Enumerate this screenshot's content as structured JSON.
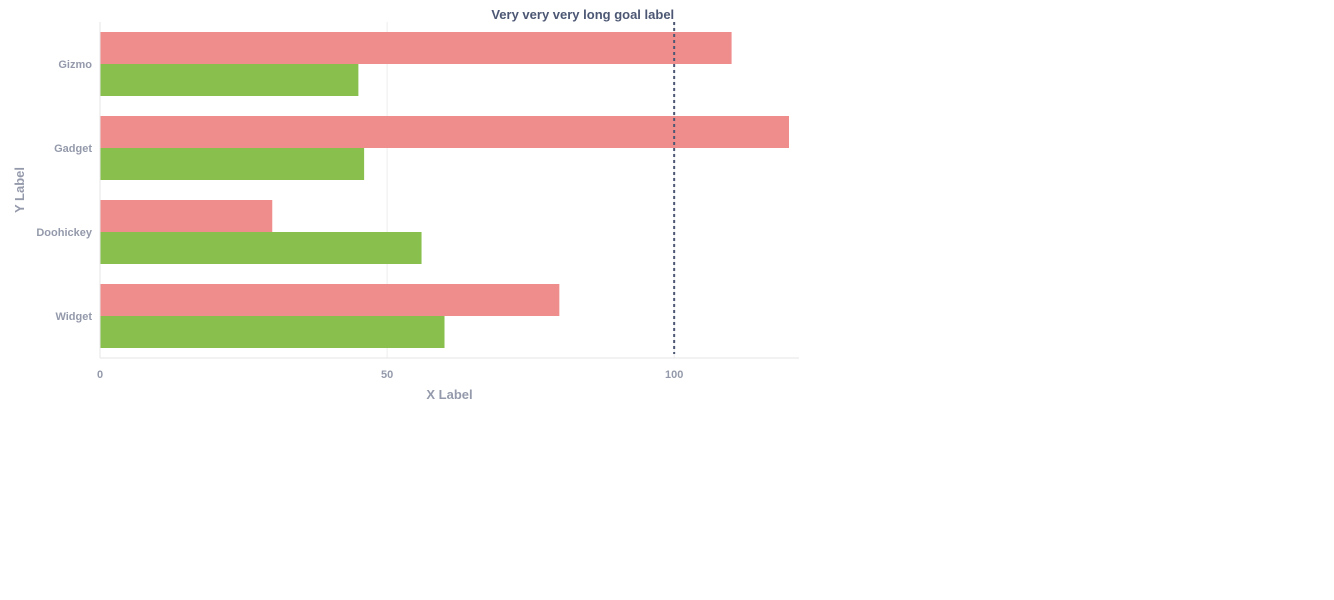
{
  "chart_data": {
    "type": "bar",
    "orientation": "horizontal",
    "categories": [
      "Gizmo",
      "Gadget",
      "Doohickey",
      "Widget"
    ],
    "series": [
      {
        "values": [
          110,
          120,
          30,
          80
        ],
        "color": "#ef8c8c"
      },
      {
        "values": [
          45,
          46,
          56,
          60
        ],
        "color": "#88bf4d"
      }
    ],
    "xlabel": "X Label",
    "ylabel": "Y Label",
    "xlim": [
      0,
      120
    ],
    "x_ticks": [
      0,
      50,
      100
    ],
    "goal": {
      "value": 100,
      "label": "Very very very long goal label",
      "color": "#4c5773"
    },
    "grid": "vertical",
    "legend": "none"
  }
}
